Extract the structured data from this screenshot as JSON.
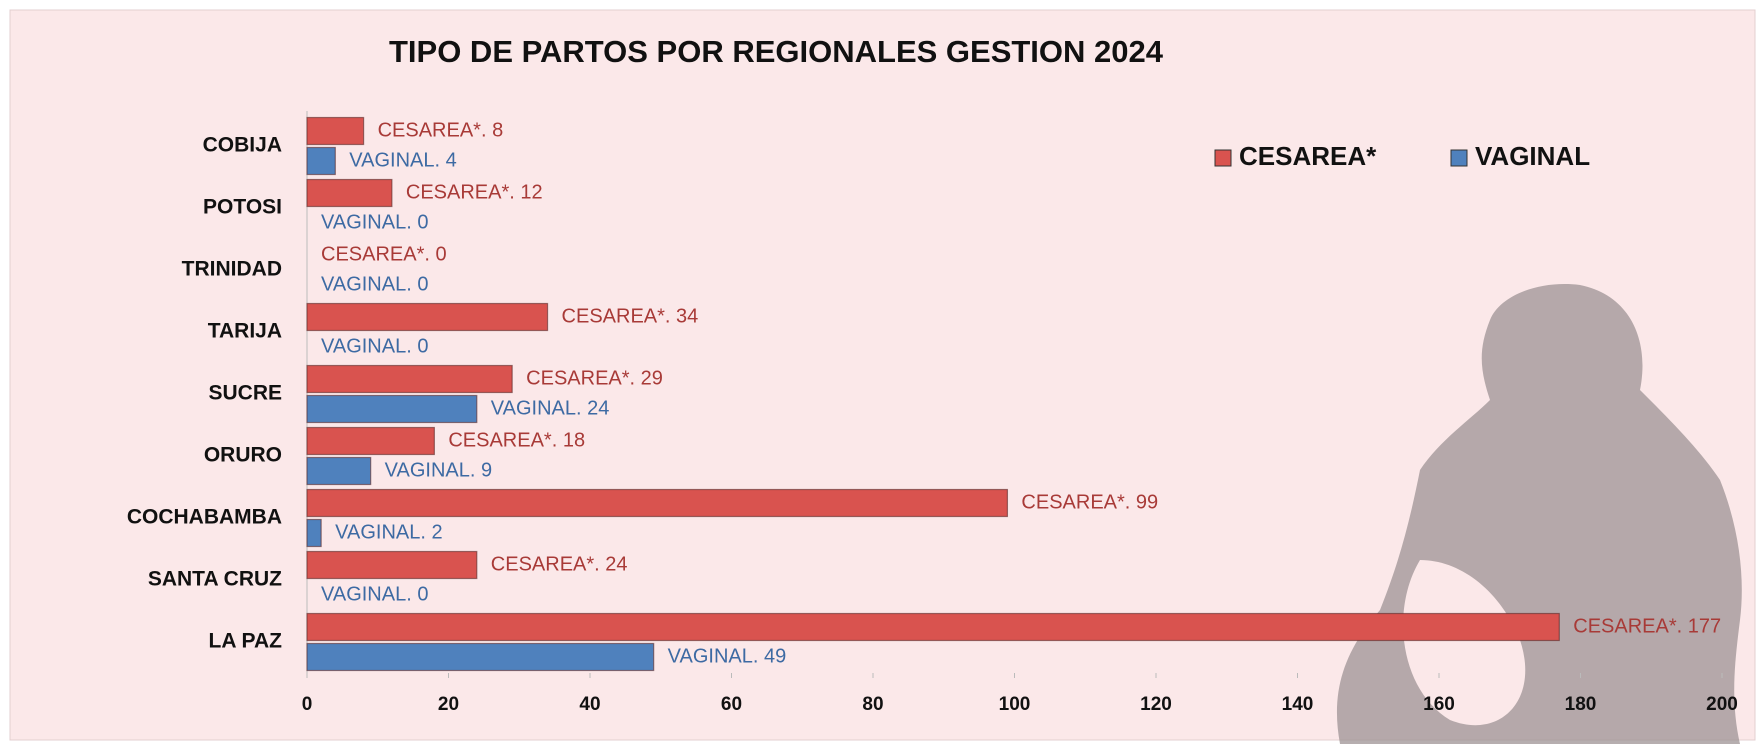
{
  "chart_data": {
    "type": "bar",
    "orientation": "horizontal",
    "title": "TIPO DE PARTOS POR REGIONALES GESTION 2024",
    "categories": [
      "COBIJA",
      "POTOSI",
      "TRINIDAD",
      "TARIJA",
      "SUCRE",
      "ORURO",
      "COCHABAMBA",
      "SANTA CRUZ",
      "LA PAZ"
    ],
    "series": [
      {
        "name": "CESAREA*",
        "color": "#d9534f",
        "values": [
          8,
          12,
          0,
          34,
          29,
          18,
          99,
          24,
          177
        ],
        "value_labels": [
          "CESAREA*. 8",
          "CESAREA*. 12",
          "CESAREA*. 0",
          "CESAREA*. 34",
          "CESAREA*. 29",
          "CESAREA*. 18",
          "CESAREA*. 99",
          "CESAREA*. 24",
          "CESAREA*. 177"
        ]
      },
      {
        "name": "VAGINAL",
        "color": "#4f81bd",
        "values": [
          4,
          0,
          0,
          0,
          24,
          9,
          2,
          0,
          49
        ],
        "value_labels": [
          "VAGINAL. 4",
          "VAGINAL. 0",
          "VAGINAL. 0",
          "VAGINAL. 0",
          "VAGINAL. 24",
          "VAGINAL. 9",
          "VAGINAL. 2",
          "VAGINAL. 0",
          "VAGINAL. 49"
        ]
      }
    ],
    "xlim": [
      0,
      200
    ],
    "xticks": [
      0,
      20,
      40,
      60,
      80,
      100,
      120,
      140,
      160,
      180,
      200
    ],
    "legend": "top-right"
  }
}
